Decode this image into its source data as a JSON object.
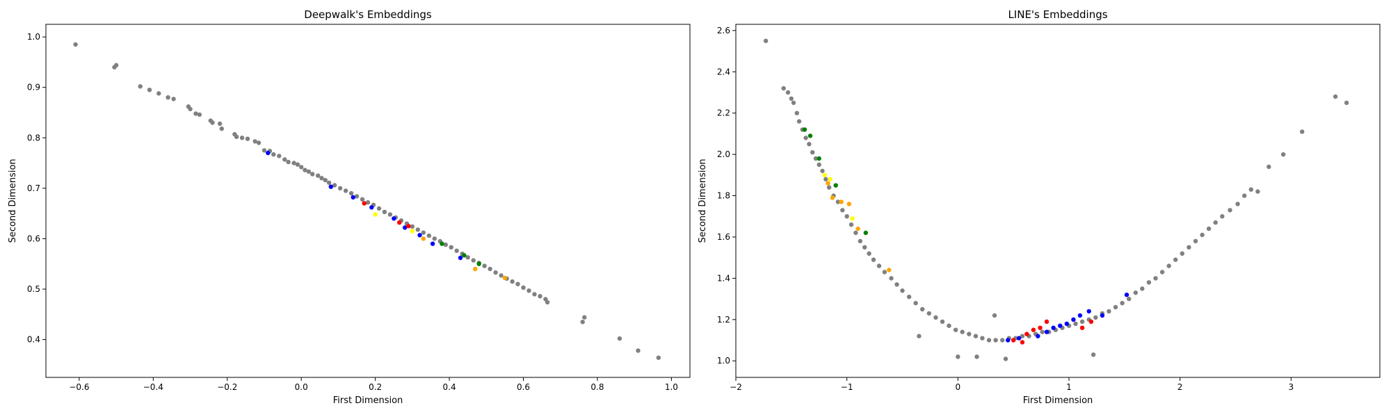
{
  "chart_data": [
    {
      "type": "scatter",
      "title": "Deepwalk's Embeddings",
      "xlabel": "First Dimension",
      "ylabel": "Second Dimension",
      "xlim": [
        -0.69,
        1.05
      ],
      "ylim": [
        0.325,
        1.025
      ],
      "xticks": [
        "−0.6",
        "−0.4",
        "−0.2",
        "0.0",
        "0.2",
        "0.4",
        "0.6",
        "0.8",
        "1.0"
      ],
      "yticks": [
        "0.4",
        "0.5",
        "0.6",
        "0.7",
        "0.8",
        "0.9",
        "1.0"
      ],
      "grid": false,
      "legend": "none",
      "colors": {
        "gray": "#808080",
        "blue": "#0000ff",
        "red": "#ff0000",
        "green": "#008000",
        "yellow": "#ffff00",
        "orange": "#ffa500"
      },
      "series": [
        {
          "color": "gray",
          "points": [
            [
              -0.61,
              0.985
            ],
            [
              -0.505,
              0.94
            ],
            [
              -0.5,
              0.944
            ],
            [
              -0.435,
              0.902
            ],
            [
              -0.41,
              0.895
            ],
            [
              -0.385,
              0.888
            ],
            [
              -0.36,
              0.88
            ],
            [
              -0.345,
              0.877
            ],
            [
              -0.305,
              0.862
            ],
            [
              -0.3,
              0.857
            ],
            [
              -0.285,
              0.848
            ],
            [
              -0.275,
              0.846
            ],
            [
              -0.245,
              0.834
            ],
            [
              -0.24,
              0.83
            ],
            [
              -0.22,
              0.828
            ],
            [
              -0.215,
              0.818
            ],
            [
              -0.18,
              0.807
            ],
            [
              -0.175,
              0.802
            ],
            [
              -0.16,
              0.8
            ],
            [
              -0.145,
              0.798
            ],
            [
              -0.125,
              0.793
            ],
            [
              -0.115,
              0.79
            ],
            [
              -0.1,
              0.775
            ],
            [
              -0.085,
              0.774
            ],
            [
              -0.075,
              0.767
            ],
            [
              -0.06,
              0.764
            ],
            [
              -0.045,
              0.757
            ],
            [
              -0.035,
              0.752
            ],
            [
              -0.02,
              0.75
            ],
            [
              -0.01,
              0.747
            ],
            [
              0.0,
              0.742
            ],
            [
              0.01,
              0.736
            ],
            [
              0.02,
              0.733
            ],
            [
              0.03,
              0.728
            ],
            [
              0.045,
              0.725
            ],
            [
              0.055,
              0.72
            ],
            [
              0.065,
              0.716
            ],
            [
              0.075,
              0.711
            ],
            [
              0.09,
              0.706
            ],
            [
              0.105,
              0.7
            ],
            [
              0.12,
              0.695
            ],
            [
              0.135,
              0.69
            ],
            [
              0.15,
              0.684
            ],
            [
              0.165,
              0.678
            ],
            [
              0.18,
              0.672
            ],
            [
              0.195,
              0.667
            ],
            [
              0.21,
              0.66
            ],
            [
              0.225,
              0.653
            ],
            [
              0.24,
              0.648
            ],
            [
              0.255,
              0.642
            ],
            [
              0.27,
              0.636
            ],
            [
              0.285,
              0.63
            ],
            [
              0.3,
              0.624
            ],
            [
              0.315,
              0.618
            ],
            [
              0.33,
              0.612
            ],
            [
              0.345,
              0.606
            ],
            [
              0.36,
              0.6
            ],
            [
              0.375,
              0.595
            ],
            [
              0.39,
              0.588
            ],
            [
              0.405,
              0.583
            ],
            [
              0.42,
              0.576
            ],
            [
              0.435,
              0.57
            ],
            [
              0.45,
              0.563
            ],
            [
              0.465,
              0.557
            ],
            [
              0.48,
              0.552
            ],
            [
              0.495,
              0.546
            ],
            [
              0.51,
              0.54
            ],
            [
              0.525,
              0.533
            ],
            [
              0.54,
              0.527
            ],
            [
              0.555,
              0.521
            ],
            [
              0.57,
              0.515
            ],
            [
              0.585,
              0.51
            ],
            [
              0.6,
              0.503
            ],
            [
              0.615,
              0.497
            ],
            [
              0.63,
              0.49
            ],
            [
              0.645,
              0.486
            ],
            [
              0.66,
              0.48
            ],
            [
              0.665,
              0.474
            ],
            [
              0.76,
              0.435
            ],
            [
              0.765,
              0.444
            ],
            [
              0.86,
              0.402
            ],
            [
              0.91,
              0.378
            ],
            [
              0.965,
              0.364
            ]
          ]
        },
        {
          "color": "blue",
          "points": [
            [
              -0.09,
              0.77
            ],
            [
              0.08,
              0.703
            ],
            [
              0.14,
              0.682
            ],
            [
              0.19,
              0.662
            ],
            [
              0.25,
              0.64
            ],
            [
              0.28,
              0.622
            ],
            [
              0.32,
              0.607
            ],
            [
              0.355,
              0.59
            ],
            [
              0.43,
              0.562
            ]
          ]
        },
        {
          "color": "red",
          "points": [
            [
              0.17,
              0.67
            ],
            [
              0.265,
              0.632
            ],
            [
              0.29,
              0.625
            ]
          ]
        },
        {
          "color": "green",
          "points": [
            [
              0.38,
              0.59
            ],
            [
              0.44,
              0.567
            ],
            [
              0.48,
              0.55
            ]
          ]
        },
        {
          "color": "yellow",
          "points": [
            [
              0.2,
              0.648
            ],
            [
              0.3,
              0.615
            ]
          ]
        },
        {
          "color": "orange",
          "points": [
            [
              0.33,
              0.6
            ],
            [
              0.47,
              0.54
            ],
            [
              0.55,
              0.522
            ]
          ]
        }
      ]
    },
    {
      "type": "scatter",
      "title": "LINE's Embeddings",
      "xlabel": "First Dimension",
      "ylabel": "Second Dimension",
      "xlim": [
        -2.0,
        3.8
      ],
      "ylim": [
        0.92,
        2.63
      ],
      "xticks": [
        "−2",
        "−1",
        "0",
        "1",
        "2",
        "3"
      ],
      "yticks": [
        "1.0",
        "1.2",
        "1.4",
        "1.6",
        "1.8",
        "2.0",
        "2.2",
        "2.4",
        "2.6"
      ],
      "grid": false,
      "legend": "none",
      "colors": {
        "gray": "#808080",
        "blue": "#0000ff",
        "red": "#ff0000",
        "green": "#008000",
        "yellow": "#ffff00",
        "orange": "#ffa500"
      },
      "series": [
        {
          "color": "gray",
          "points": [
            [
              -1.73,
              2.55
            ],
            [
              -1.57,
              2.32
            ],
            [
              -1.53,
              2.3
            ],
            [
              -1.5,
              2.27
            ],
            [
              -1.48,
              2.25
            ],
            [
              -1.45,
              2.2
            ],
            [
              -1.43,
              2.16
            ],
            [
              -1.4,
              2.12
            ],
            [
              -1.37,
              2.08
            ],
            [
              -1.34,
              2.05
            ],
            [
              -1.31,
              2.01
            ],
            [
              -1.28,
              1.98
            ],
            [
              -1.25,
              1.95
            ],
            [
              -1.22,
              1.92
            ],
            [
              -1.19,
              1.88
            ],
            [
              -1.16,
              1.84
            ],
            [
              -1.12,
              1.8
            ],
            [
              -1.08,
              1.77
            ],
            [
              -1.04,
              1.73
            ],
            [
              -1.0,
              1.7
            ],
            [
              -0.96,
              1.66
            ],
            [
              -0.92,
              1.62
            ],
            [
              -0.88,
              1.58
            ],
            [
              -0.84,
              1.55
            ],
            [
              -0.8,
              1.52
            ],
            [
              -0.76,
              1.49
            ],
            [
              -0.71,
              1.46
            ],
            [
              -0.66,
              1.43
            ],
            [
              -0.6,
              1.4
            ],
            [
              -0.55,
              1.37
            ],
            [
              -0.5,
              1.34
            ],
            [
              -0.44,
              1.31
            ],
            [
              -0.38,
              1.28
            ],
            [
              -0.32,
              1.25
            ],
            [
              -0.26,
              1.23
            ],
            [
              -0.2,
              1.21
            ],
            [
              -0.14,
              1.19
            ],
            [
              -0.08,
              1.17
            ],
            [
              -0.02,
              1.15
            ],
            [
              0.04,
              1.14
            ],
            [
              0.1,
              1.13
            ],
            [
              0.16,
              1.12
            ],
            [
              0.22,
              1.11
            ],
            [
              0.28,
              1.1
            ],
            [
              0.34,
              1.1
            ],
            [
              0.4,
              1.1
            ],
            [
              0.46,
              1.11
            ],
            [
              0.52,
              1.11
            ],
            [
              0.58,
              1.12
            ],
            [
              0.64,
              1.12
            ],
            [
              0.7,
              1.13
            ],
            [
              0.76,
              1.14
            ],
            [
              0.82,
              1.14
            ],
            [
              0.88,
              1.15
            ],
            [
              0.94,
              1.16
            ],
            [
              1.0,
              1.17
            ],
            [
              1.06,
              1.18
            ],
            [
              1.12,
              1.19
            ],
            [
              1.18,
              1.2
            ],
            [
              1.24,
              1.21
            ],
            [
              1.3,
              1.23
            ],
            [
              1.36,
              1.24
            ],
            [
              1.42,
              1.26
            ],
            [
              1.48,
              1.28
            ],
            [
              1.54,
              1.3
            ],
            [
              1.6,
              1.33
            ],
            [
              1.66,
              1.35
            ],
            [
              1.72,
              1.38
            ],
            [
              1.78,
              1.4
            ],
            [
              1.84,
              1.43
            ],
            [
              1.9,
              1.46
            ],
            [
              1.96,
              1.49
            ],
            [
              2.02,
              1.52
            ],
            [
              2.08,
              1.55
            ],
            [
              2.14,
              1.58
            ],
            [
              2.2,
              1.61
            ],
            [
              2.26,
              1.64
            ],
            [
              2.32,
              1.67
            ],
            [
              2.38,
              1.7
            ],
            [
              2.45,
              1.73
            ],
            [
              2.52,
              1.76
            ],
            [
              2.58,
              1.8
            ],
            [
              2.64,
              1.83
            ],
            [
              2.7,
              1.82
            ],
            [
              2.8,
              1.94
            ],
            [
              2.93,
              2.0
            ],
            [
              3.1,
              2.11
            ],
            [
              3.4,
              2.28
            ],
            [
              3.5,
              2.25
            ],
            [
              -0.35,
              1.12
            ],
            [
              0.0,
              1.02
            ],
            [
              0.33,
              1.22
            ],
            [
              0.43,
              1.01
            ],
            [
              1.22,
              1.03
            ],
            [
              0.17,
              1.02
            ]
          ]
        },
        {
          "color": "blue",
          "points": [
            [
              0.45,
              1.1
            ],
            [
              0.55,
              1.11
            ],
            [
              0.72,
              1.12
            ],
            [
              0.8,
              1.14
            ],
            [
              0.86,
              1.16
            ],
            [
              0.92,
              1.17
            ],
            [
              0.98,
              1.18
            ],
            [
              1.04,
              1.2
            ],
            [
              1.1,
              1.22
            ],
            [
              1.18,
              1.24
            ],
            [
              1.3,
              1.22
            ],
            [
              1.52,
              1.32
            ]
          ]
        },
        {
          "color": "red",
          "points": [
            [
              0.5,
              1.1
            ],
            [
              0.62,
              1.13
            ],
            [
              0.68,
              1.15
            ],
            [
              0.74,
              1.16
            ],
            [
              0.8,
              1.19
            ],
            [
              1.12,
              1.16
            ],
            [
              1.2,
              1.19
            ],
            [
              0.58,
              1.09
            ]
          ]
        },
        {
          "color": "green",
          "points": [
            [
              -1.38,
              2.12
            ],
            [
              -1.33,
              2.09
            ],
            [
              -1.25,
              1.98
            ],
            [
              -1.1,
              1.85
            ],
            [
              -0.83,
              1.62
            ]
          ]
        },
        {
          "color": "yellow",
          "points": [
            [
              -1.2,
              1.9
            ],
            [
              -1.15,
              1.88
            ],
            [
              -0.95,
              1.69
            ]
          ]
        },
        {
          "color": "orange",
          "points": [
            [
              -1.17,
              1.86
            ],
            [
              -1.13,
              1.79
            ],
            [
              -1.05,
              1.77
            ],
            [
              -0.98,
              1.76
            ],
            [
              -0.9,
              1.64
            ],
            [
              -0.62,
              1.44
            ]
          ]
        }
      ]
    }
  ]
}
